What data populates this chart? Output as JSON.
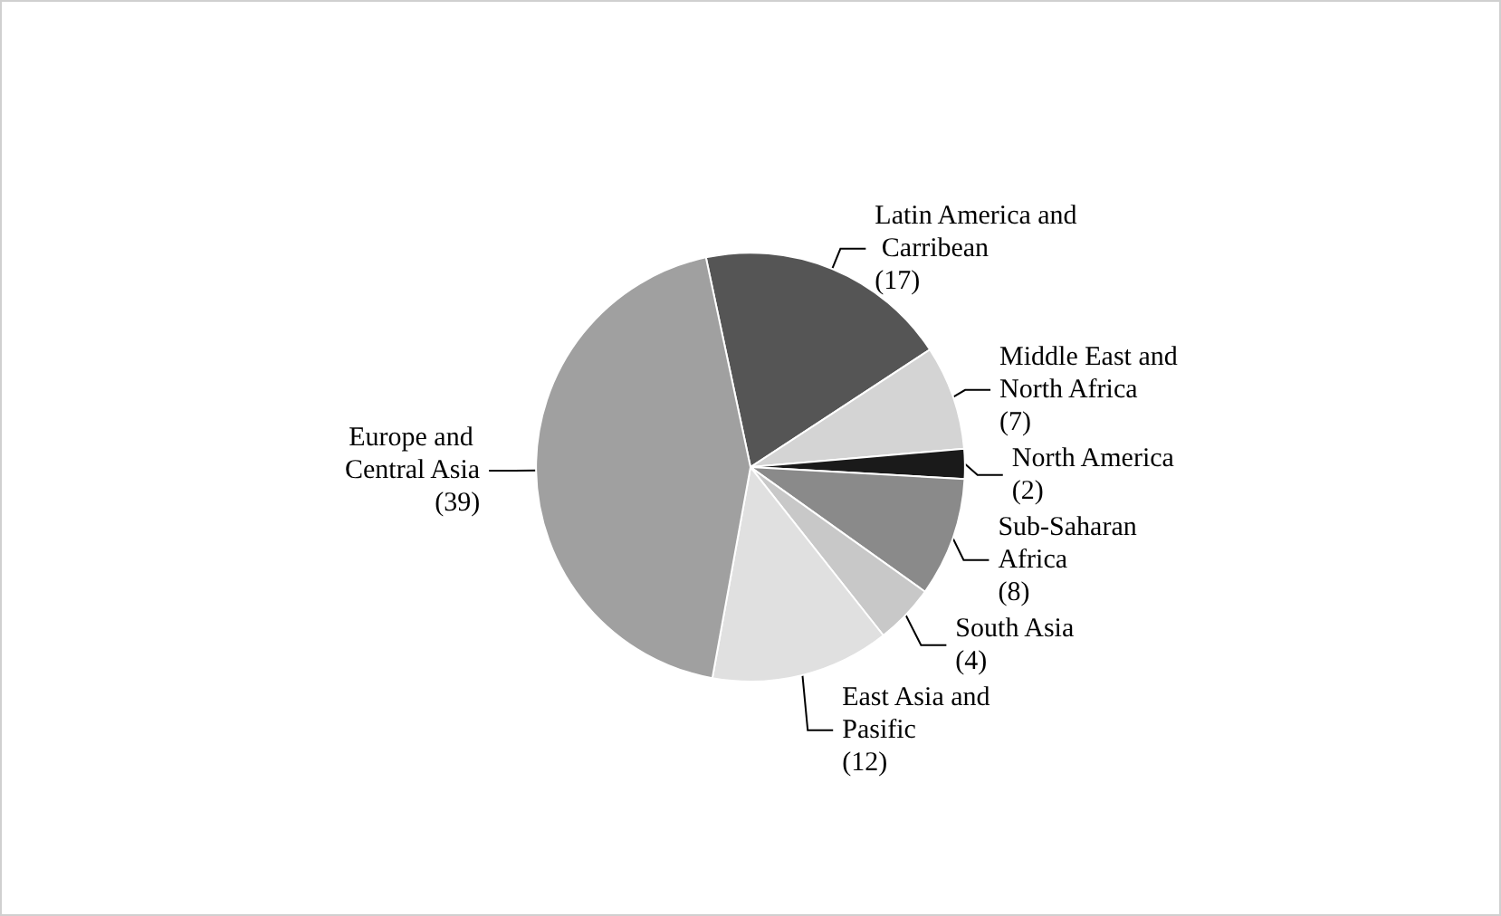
{
  "chart_data": {
    "type": "pie",
    "categories": [
      "Latin America and Carribean",
      "Middle East and North Africa",
      "North America",
      "Sub-Saharan Africa",
      "South Asia",
      "East Asia and Pasific",
      "Europe and Central Asia"
    ],
    "values": [
      17,
      7,
      2,
      8,
      4,
      12,
      39
    ],
    "value_labels": [
      "(17)",
      "(7)",
      "(2)",
      "(8)",
      "(4)",
      "(12)",
      "(39)"
    ],
    "colors": [
      "#555555",
      "#d4d4d4",
      "#1a1a1a",
      "#8a8a8a",
      "#c8c8c8",
      "#e0e0e0",
      "#a0a0a0"
    ],
    "legend": false
  }
}
